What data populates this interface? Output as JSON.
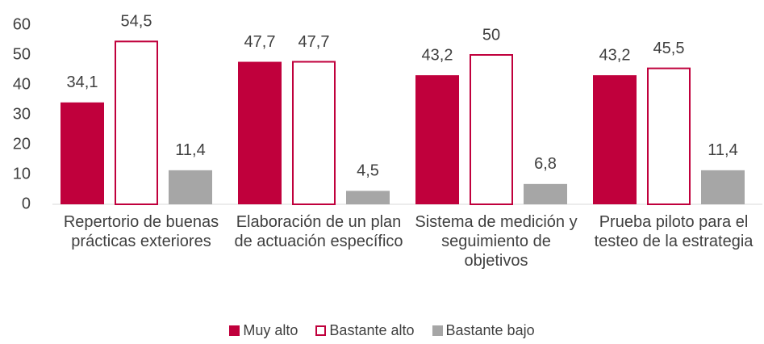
{
  "chart_data": {
    "type": "bar",
    "categories": [
      "Repertorio de buenas prácticas exteriores",
      "Elaboración de un plan de actuación específico",
      "Sistema de medición y seguimiento de objetivos",
      "Prueba piloto para el testeo de la estrategia"
    ],
    "series": [
      {
        "name": "Muy alto",
        "color": "#c0003c",
        "values": [
          34.1,
          47.7,
          43.2,
          43.2
        ],
        "value_labels": [
          "34,1",
          "47,7",
          "43,2",
          "43,2"
        ]
      },
      {
        "name": "Bastante alto",
        "color": "#ffffff",
        "edgecolor": "#c0003c",
        "values": [
          54.5,
          47.7,
          50,
          45.5
        ],
        "value_labels": [
          "54,5",
          "47,7",
          "50",
          "45,5"
        ]
      },
      {
        "name": "Bastante bajo",
        "color": "#a6a6a6",
        "values": [
          11.4,
          4.5,
          6.8,
          11.4
        ],
        "value_labels": [
          "11,4",
          "4,5",
          "6,8",
          "11,4"
        ]
      }
    ],
    "ylim": [
      0,
      60
    ],
    "yticks": [
      0,
      10,
      20,
      30,
      40,
      50,
      60
    ],
    "grid": false,
    "legend": "bottom"
  }
}
